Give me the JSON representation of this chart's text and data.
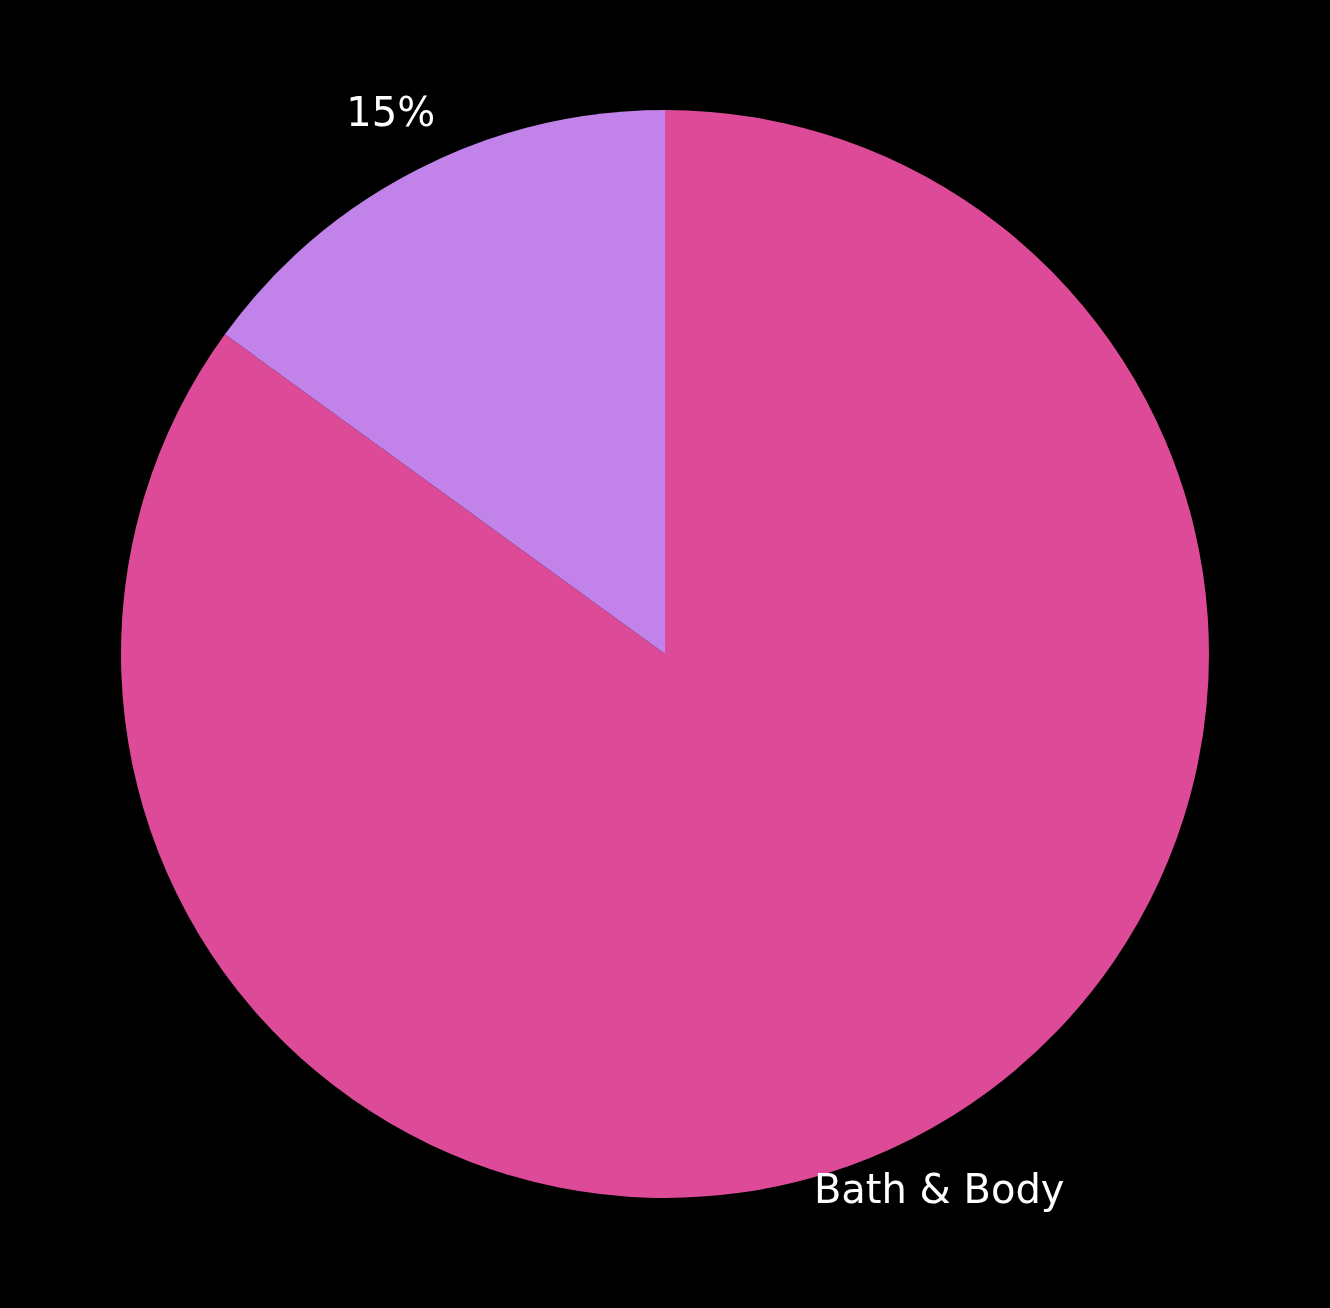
{
  "chart_data": {
    "type": "pie",
    "categories": [
      "Bath & Body",
      null
    ],
    "values": [
      85,
      15
    ],
    "colors": [
      "#dd4a98",
      "#c182e9"
    ],
    "value_labels": [
      null,
      "15%"
    ],
    "legend": false
  }
}
